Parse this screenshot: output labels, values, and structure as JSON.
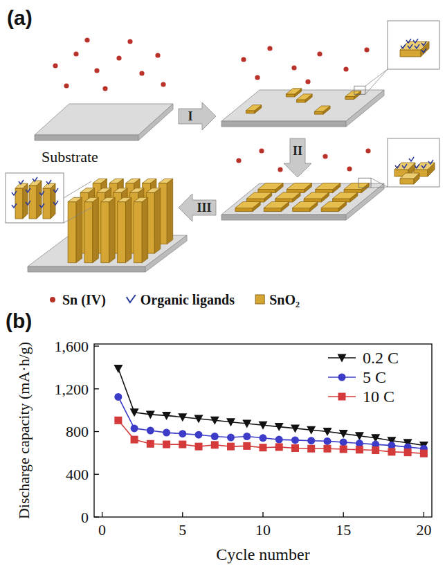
{
  "diagram": {
    "label": "(a)",
    "substrate_label": "Substrate",
    "steps": [
      "I",
      "II",
      "III"
    ],
    "legend": [
      {
        "label": "Sn (IV)"
      },
      {
        "label": "Organic ligands"
      },
      {
        "label": "SnO₂"
      }
    ]
  },
  "chart_data": {
    "type": "line",
    "title": "(b)",
    "x_label": "Cycle number",
    "y_label": "Discharge capacity (mA·h/g)",
    "x": [
      1,
      2,
      3,
      4,
      5,
      6,
      7,
      8,
      9,
      10,
      11,
      12,
      13,
      14,
      15,
      16,
      17,
      18,
      19,
      20
    ],
    "series": [
      {
        "name": "0.2 C",
        "color": "#111111",
        "marker": "triangle-down",
        "values": [
          1390,
          980,
          960,
          950,
          935,
          920,
          905,
          890,
          875,
          860,
          845,
          830,
          815,
          800,
          780,
          760,
          740,
          715,
          695,
          670
        ]
      },
      {
        "name": "5 C",
        "color": "#3c3cc8",
        "marker": "circle",
        "values": [
          1125,
          830,
          810,
          790,
          780,
          770,
          755,
          745,
          755,
          740,
          725,
          720,
          715,
          710,
          700,
          690,
          680,
          670,
          655,
          640
        ]
      },
      {
        "name": "10 C",
        "color": "#d43a3a",
        "marker": "square",
        "values": [
          905,
          725,
          685,
          680,
          680,
          660,
          675,
          660,
          665,
          650,
          655,
          645,
          640,
          640,
          635,
          630,
          625,
          610,
          605,
          595
        ]
      }
    ],
    "xlim": [
      -0.5,
      20.5
    ],
    "ylim": [
      0,
      1620
    ],
    "xticks": [
      0,
      5,
      10,
      15,
      20
    ],
    "yticks": [
      0,
      400,
      800,
      {
        "value": 1200,
        "label": "1,200"
      },
      {
        "value": 1600,
        "label": "1,600"
      }
    ],
    "grid": false,
    "legend": "upper right"
  }
}
